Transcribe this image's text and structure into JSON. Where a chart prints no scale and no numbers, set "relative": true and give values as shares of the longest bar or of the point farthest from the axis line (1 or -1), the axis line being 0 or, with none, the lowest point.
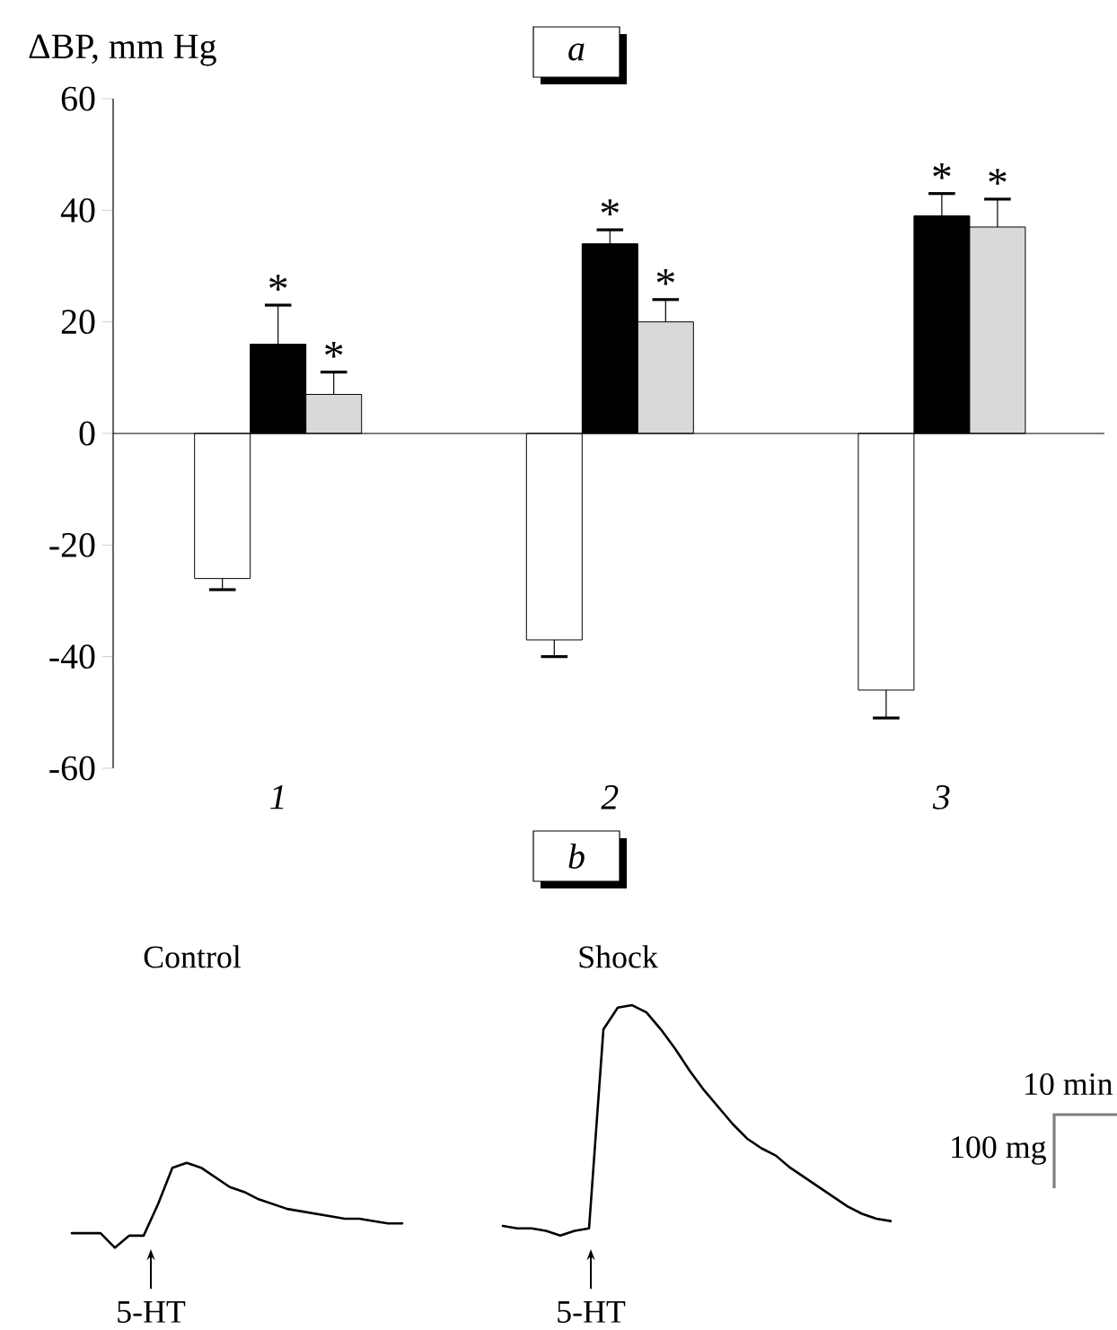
{
  "chart_data": [
    {
      "type": "bar",
      "title": "a",
      "ylabel": "ΔBP, mm Hg",
      "categories": [
        "1",
        "2",
        "3"
      ],
      "series": [
        {
          "color": "#ffffff",
          "values": [
            -26,
            -37,
            -46
          ],
          "errors": [
            [
              -28,
              -26
            ],
            [
              -40,
              -37
            ],
            [
              -51,
              -46
            ]
          ]
        },
        {
          "color": "#000000",
          "values": [
            16,
            34,
            39
          ],
          "errors": [
            [
              16,
              23
            ],
            [
              34,
              36.5
            ],
            [
              39,
              43
            ]
          ]
        },
        {
          "color": "#d9d9d9",
          "values": [
            7,
            20,
            37
          ],
          "errors": [
            [
              7,
              11
            ],
            [
              20,
              24
            ],
            [
              37,
              42
            ]
          ]
        }
      ],
      "ylim": [
        -60,
        60
      ],
      "yticks": [
        -60,
        -40,
        -20,
        0,
        20,
        40,
        60
      ],
      "annotations": [
        {
          "text": "*",
          "x": "1",
          "y": 23
        },
        "*",
        {
          "text": "*",
          "x": "2",
          "y": 36.5
        },
        "*",
        {
          "text": "*",
          "x": "3",
          "y": 43
        },
        {
          "text": "*",
          "x": "3",
          "y": 42
        }
      ]
    },
    {
      "type": "line",
      "title": "b",
      "relative": true,
      "categories": [
        null,
        null,
        null,
        null,
        null,
        null,
        null,
        null,
        null,
        null,
        null,
        null,
        null,
        null,
        null,
        null,
        null,
        null,
        null,
        null,
        null,
        null,
        null,
        null,
        null,
        null,
        null,
        null,
        null,
        null,
        null,
        null,
        null,
        null,
        null,
        null,
        null,
        null,
        null,
        null,
        null,
        null,
        null,
        null,
        null,
        null,
        null,
        null,
        null,
        null,
        null,
        null,
        null,
        null,
        null,
        null,
        null,
        null
      ],
      "series": [
        {
          "color": "#000000",
          "values": [
            0.06,
            0.06,
            0.06,
            0,
            0.05,
            0.05,
            0.18,
            0.33,
            0.35,
            0.33,
            0.29,
            0.25,
            0.23,
            0.2,
            0.18,
            0.16,
            0.15,
            0.14,
            0.13,
            0.12,
            0.12,
            0.11,
            0.1,
            0.1,
            null,
            null,
            null,
            null,
            null,
            null,
            null,
            null,
            null,
            null,
            null,
            null,
            null,
            null,
            null,
            null,
            null,
            null,
            null,
            null,
            null,
            null,
            null,
            null,
            null,
            null,
            null,
            null,
            null,
            null,
            null,
            null,
            null,
            null
          ]
        },
        {
          "color": "#000000",
          "values": [
            null,
            null,
            null,
            null,
            null,
            null,
            null,
            null,
            null,
            null,
            null,
            null,
            null,
            null,
            null,
            null,
            null,
            null,
            null,
            null,
            null,
            null,
            null,
            null,
            null,
            null,
            null,
            null,
            null,
            null,
            0.09,
            0.08,
            0.08,
            0.07,
            0.05,
            0.07,
            0.08,
            0.9,
            0.99,
            1,
            0.97,
            0.9,
            0.82,
            0.73,
            0.65,
            0.58,
            0.51,
            0.45,
            0.41,
            0.38,
            0.33,
            0.29,
            0.25,
            0.21,
            0.17,
            0.14,
            0.12,
            0.11
          ]
        }
      ],
      "annotations": [
        "Control",
        "Shock",
        "5-HT",
        "5-HT",
        "10 min",
        "100 mg"
      ]
    }
  ]
}
